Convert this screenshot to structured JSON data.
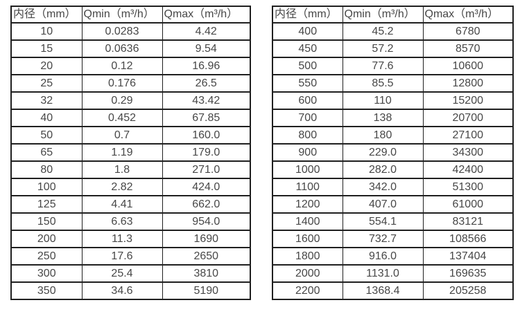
{
  "theme": {
    "background": "#ffffff",
    "text_color": "#474747",
    "border_color": "#1f1f1f"
  },
  "tables": [
    {
      "name": "flow-table-small-diameters",
      "headers": [
        "内径（mm）",
        "Qmin（m³/h）",
        "Qmax（m³/h）"
      ],
      "rows": [
        [
          "10",
          "0.0283",
          "4.42"
        ],
        [
          "15",
          "0.0636",
          "9.54"
        ],
        [
          "20",
          "0.12",
          "16.96"
        ],
        [
          "25",
          "0.176",
          "26.5"
        ],
        [
          "32",
          "0.29",
          "43.42"
        ],
        [
          "40",
          "0.452",
          "67.85"
        ],
        [
          "50",
          "0.7",
          "160.0"
        ],
        [
          "65",
          "1.19",
          "179.0"
        ],
        [
          "80",
          "1.8",
          "271.0"
        ],
        [
          "100",
          "2.82",
          "424.0"
        ],
        [
          "125",
          "4.41",
          "662.0"
        ],
        [
          "150",
          "6.63",
          "954.0"
        ],
        [
          "200",
          "11.3",
          "1690"
        ],
        [
          "250",
          "17.6",
          "2650"
        ],
        [
          "300",
          "25.4",
          "3810"
        ],
        [
          "350",
          "34.6",
          "5190"
        ]
      ]
    },
    {
      "name": "flow-table-large-diameters",
      "headers": [
        "内径（mm）",
        "Qmin（m³/h）",
        "Qmax（m³/h）"
      ],
      "rows": [
        [
          "400",
          "45.2",
          "6780"
        ],
        [
          "450",
          "57.2",
          "8570"
        ],
        [
          "500",
          "77.6",
          "10600"
        ],
        [
          "550",
          "85.5",
          "12800"
        ],
        [
          "600",
          "110",
          "15200"
        ],
        [
          "700",
          "138",
          "20700"
        ],
        [
          "800",
          "180",
          "27100"
        ],
        [
          "900",
          "229.0",
          "34300"
        ],
        [
          "1000",
          "282.0",
          "42400"
        ],
        [
          "1100",
          "342.0",
          "51300"
        ],
        [
          "1200",
          "407.0",
          "61000"
        ],
        [
          "1400",
          "554.1",
          "83121"
        ],
        [
          "1600",
          "732.7",
          "108566"
        ],
        [
          "1800",
          "916.0",
          "137404"
        ],
        [
          "2000",
          "1131.0",
          "169635"
        ],
        [
          "2200",
          "1368.4",
          "205258"
        ]
      ]
    }
  ]
}
